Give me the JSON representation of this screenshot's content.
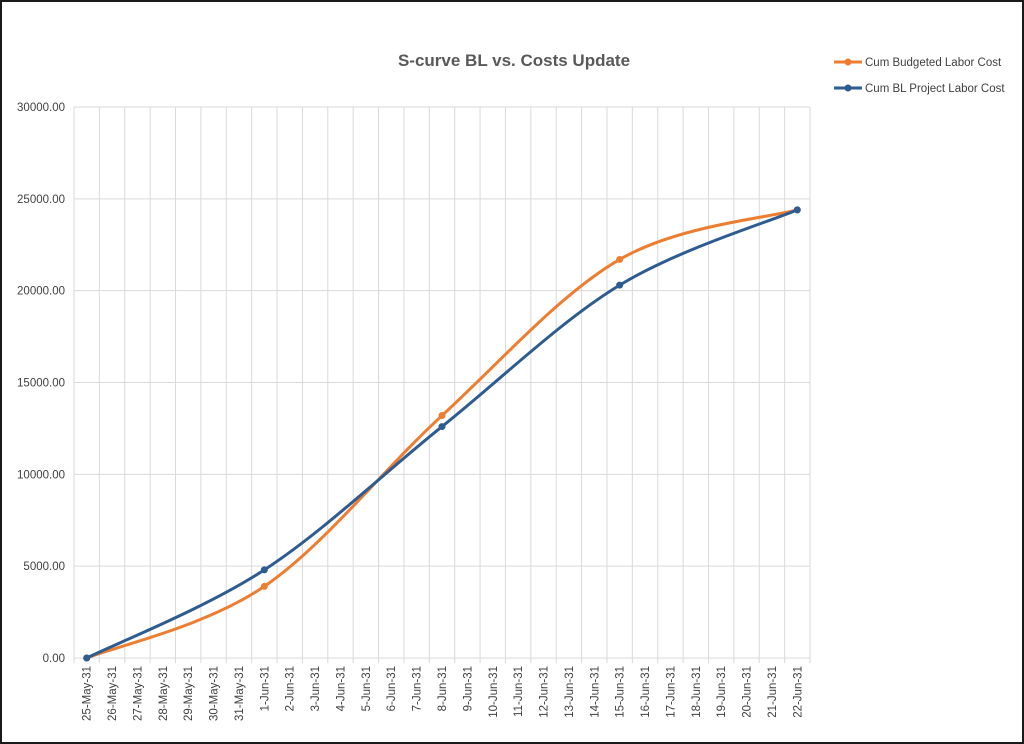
{
  "chart_data": {
    "type": "line",
    "title": "S-curve BL vs. Costs Update",
    "xlabel": "",
    "ylabel": "",
    "ylim": [
      0,
      30000
    ],
    "yticks": [
      "0.00",
      "5000.00",
      "10000.00",
      "15000.00",
      "20000.00",
      "25000.00",
      "30000.00"
    ],
    "categories": [
      "25-May-31",
      "26-May-31",
      "27-May-31",
      "28-May-31",
      "29-May-31",
      "30-May-31",
      "31-May-31",
      "1-Jun-31",
      "2-Jun-31",
      "3-Jun-31",
      "4-Jun-31",
      "5-Jun-31",
      "6-Jun-31",
      "7-Jun-31",
      "8-Jun-31",
      "9-Jun-31",
      "10-Jun-31",
      "11-Jun-31",
      "12-Jun-31",
      "13-Jun-31",
      "14-Jun-31",
      "15-Jun-31",
      "16-Jun-31",
      "17-Jun-31",
      "18-Jun-31",
      "19-Jun-31",
      "20-Jun-31",
      "21-Jun-31",
      "22-Jun-31"
    ],
    "grid": true,
    "legend_position": "top-right",
    "smooth": true,
    "series": [
      {
        "name": "Cum Budgeted Labor Cost",
        "color": "#ED7D31",
        "points": [
          {
            "x": "25-May-31",
            "y": 0
          },
          {
            "x": "1-Jun-31",
            "y": 3900
          },
          {
            "x": "8-Jun-31",
            "y": 13200
          },
          {
            "x": "15-Jun-31",
            "y": 21700
          },
          {
            "x": "22-Jun-31",
            "y": 24400
          }
        ]
      },
      {
        "name": "Cum BL Project Labor Cost",
        "color": "#2E5C91",
        "points": [
          {
            "x": "25-May-31",
            "y": 0
          },
          {
            "x": "1-Jun-31",
            "y": 4800
          },
          {
            "x": "8-Jun-31",
            "y": 12600
          },
          {
            "x": "15-Jun-31",
            "y": 20300
          },
          {
            "x": "22-Jun-31",
            "y": 24400
          }
        ]
      }
    ]
  }
}
